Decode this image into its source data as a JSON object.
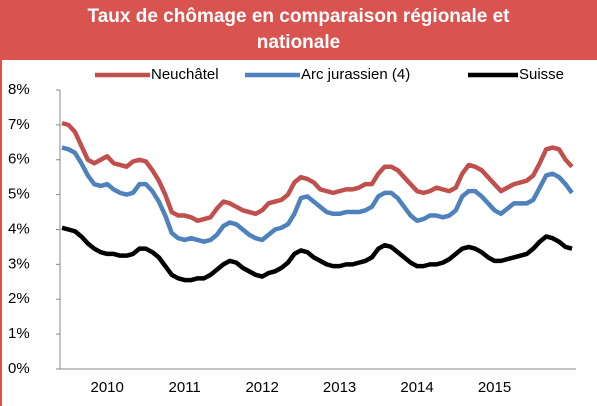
{
  "chart_data": {
    "type": "line",
    "title": "Taux de chômage en comparaison régionale et nationale",
    "categories": [
      null,
      null,
      null,
      null,
      null,
      null,
      null,
      "2010",
      null,
      null,
      null,
      null,
      null,
      null,
      null,
      null,
      null,
      null,
      null,
      "2011",
      null,
      null,
      null,
      null,
      null,
      null,
      null,
      null,
      null,
      null,
      null,
      "2012",
      null,
      null,
      null,
      null,
      null,
      null,
      null,
      null,
      null,
      null,
      null,
      "2013",
      null,
      null,
      null,
      null,
      null,
      null,
      null,
      null,
      null,
      null,
      null,
      "2014",
      null,
      null,
      null,
      null,
      null,
      null,
      null,
      null,
      null,
      null,
      null,
      "2015",
      null,
      null,
      null,
      null,
      null,
      null,
      null,
      null,
      null,
      null,
      null,
      null
    ],
    "series": [
      {
        "name": "Neuchâtel",
        "color": "#c0504d",
        "values": [
          7.05,
          7.0,
          6.8,
          6.4,
          6.0,
          5.9,
          6.0,
          6.1,
          5.9,
          5.85,
          5.8,
          5.95,
          6.0,
          5.95,
          5.7,
          5.4,
          5.0,
          4.5,
          4.4,
          4.4,
          4.35,
          4.25,
          4.3,
          4.35,
          4.6,
          4.8,
          4.75,
          4.65,
          4.55,
          4.5,
          4.45,
          4.55,
          4.75,
          4.8,
          4.85,
          5.0,
          5.35,
          5.5,
          5.45,
          5.35,
          5.15,
          5.1,
          5.05,
          5.1,
          5.15,
          5.15,
          5.2,
          5.3,
          5.3,
          5.6,
          5.8,
          5.8,
          5.7,
          5.5,
          5.3,
          5.1,
          5.05,
          5.1,
          5.2,
          5.15,
          5.1,
          5.2,
          5.6,
          5.85,
          5.8,
          5.7,
          5.5,
          5.3,
          5.1,
          5.2,
          5.3,
          5.35,
          5.4,
          5.55,
          5.9,
          6.3,
          6.35,
          6.3,
          6.0,
          5.8
        ]
      },
      {
        "name": "Arc jurassien (4)",
        "color": "#4f81bd",
        "values": [
          6.35,
          6.3,
          6.2,
          5.9,
          5.55,
          5.3,
          5.25,
          5.3,
          5.15,
          5.05,
          5.0,
          5.05,
          5.3,
          5.3,
          5.1,
          4.8,
          4.4,
          3.9,
          3.75,
          3.7,
          3.75,
          3.7,
          3.65,
          3.7,
          3.85,
          4.1,
          4.2,
          4.15,
          4.0,
          3.85,
          3.75,
          3.7,
          3.85,
          4.0,
          4.05,
          4.15,
          4.45,
          4.9,
          4.95,
          4.8,
          4.65,
          4.5,
          4.45,
          4.45,
          4.5,
          4.5,
          4.5,
          4.55,
          4.65,
          4.95,
          5.05,
          5.05,
          4.9,
          4.65,
          4.4,
          4.25,
          4.3,
          4.4,
          4.4,
          4.35,
          4.4,
          4.55,
          4.95,
          5.1,
          5.1,
          4.95,
          4.75,
          4.55,
          4.45,
          4.6,
          4.75,
          4.75,
          4.75,
          4.85,
          5.2,
          5.55,
          5.6,
          5.5,
          5.3,
          5.05
        ]
      },
      {
        "name": "Suisse",
        "color": "#000000",
        "values": [
          4.05,
          4.0,
          3.95,
          3.8,
          3.6,
          3.45,
          3.35,
          3.3,
          3.3,
          3.25,
          3.25,
          3.3,
          3.45,
          3.45,
          3.35,
          3.2,
          2.95,
          2.7,
          2.6,
          2.55,
          2.55,
          2.6,
          2.6,
          2.7,
          2.85,
          3.0,
          3.1,
          3.05,
          2.9,
          2.8,
          2.7,
          2.65,
          2.75,
          2.8,
          2.9,
          3.05,
          3.3,
          3.4,
          3.35,
          3.2,
          3.1,
          3.0,
          2.95,
          2.95,
          3.0,
          3.0,
          3.05,
          3.1,
          3.2,
          3.45,
          3.55,
          3.5,
          3.35,
          3.2,
          3.05,
          2.95,
          2.95,
          3.0,
          3.0,
          3.05,
          3.15,
          3.3,
          3.45,
          3.5,
          3.45,
          3.35,
          3.2,
          3.1,
          3.1,
          3.15,
          3.2,
          3.25,
          3.3,
          3.45,
          3.65,
          3.8,
          3.75,
          3.65,
          3.5,
          3.45
        ]
      }
    ],
    "ylim": [
      0,
      8
    ],
    "yticks": [
      {
        "value": 0,
        "label": "0%"
      },
      {
        "value": 1,
        "label": "1%"
      },
      {
        "value": 2,
        "label": "2%"
      },
      {
        "value": 3,
        "label": "3%"
      },
      {
        "value": 4,
        "label": "4%"
      },
      {
        "value": 5,
        "label": "5%"
      },
      {
        "value": 6,
        "label": "6%"
      },
      {
        "value": 7,
        "label": "7%"
      },
      {
        "value": 8,
        "label": "8%"
      }
    ],
    "legend": "top"
  }
}
